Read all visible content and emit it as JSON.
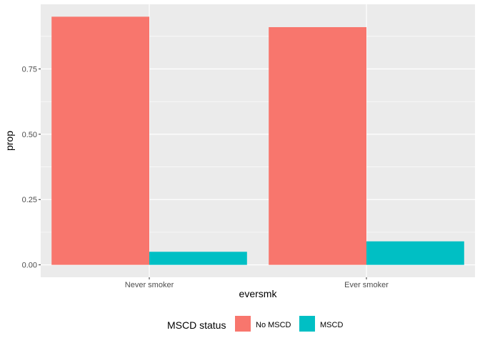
{
  "chart_data": {
    "type": "bar",
    "categories": [
      "Never smoker",
      "Ever smoker"
    ],
    "series": [
      {
        "name": "No MSCD",
        "color": "#F8766D",
        "values": [
          0.95,
          0.91
        ]
      },
      {
        "name": "MSCD",
        "color": "#00BFC4",
        "values": [
          0.05,
          0.09
        ]
      }
    ],
    "xlabel": "eversmk",
    "ylabel": "prop",
    "ylim": [
      -0.0475,
      0.9975
    ],
    "yticks": [
      0.0,
      0.25,
      0.5,
      0.75
    ],
    "ytick_labels": [
      "0.00",
      "0.25",
      "0.50",
      "0.75"
    ],
    "grid": true,
    "legend": {
      "title": "MSCD status",
      "position": "bottom",
      "labels": [
        "No MSCD",
        "MSCD"
      ]
    },
    "panel_color": "#EBEBEB",
    "grid_color": "#FFFFFF"
  }
}
